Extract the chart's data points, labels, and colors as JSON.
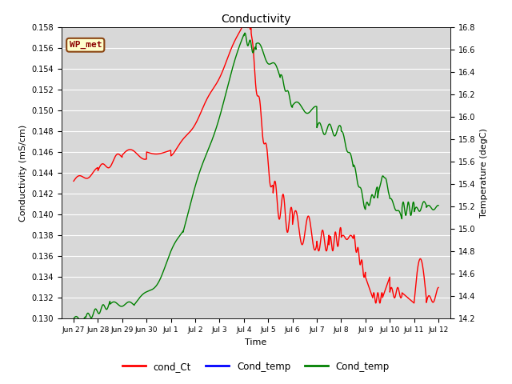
{
  "title": "Conductivity",
  "xlabel": "Time",
  "ylabel_left": "Conductivity (mS/cm)",
  "ylabel_right": "Temperature (degC)",
  "ylim_left": [
    0.13,
    0.158
  ],
  "ylim_right": [
    14.2,
    16.8
  ],
  "bg_color": "#d8d8d8",
  "grid_color": "#ffffff",
  "annotation_box": {
    "text": "WP_met",
    "facecolor": "#ffffcc",
    "edgecolor": "#8B4513",
    "fontsize": 8,
    "fontcolor": "#8B0000"
  },
  "xtick_labels": [
    "Jun 27",
    "Jun 28",
    "Jun 29",
    "Jun 30",
    "Jul 1",
    "Jul 2",
    "Jul 3",
    "Jul 4",
    "Jul 5",
    "Jul 6",
    "Jul 7",
    "Jul 8",
    "Jul 9",
    "Jul 10",
    "Jul 11",
    "Jul 12"
  ],
  "xtick_positions": [
    0,
    1,
    2,
    3,
    4,
    5,
    6,
    7,
    8,
    9,
    10,
    11,
    12,
    13,
    14,
    15
  ],
  "xlim": [
    -0.5,
    15.5
  ],
  "yticks_left": [
    0.13,
    0.132,
    0.134,
    0.136,
    0.138,
    0.14,
    0.142,
    0.144,
    0.146,
    0.148,
    0.15,
    0.152,
    0.154,
    0.156,
    0.158
  ],
  "yticks_right": [
    14.2,
    14.4,
    14.6,
    14.8,
    15.0,
    15.2,
    15.4,
    15.6,
    15.8,
    16.0,
    16.2,
    16.4,
    16.6,
    16.8
  ]
}
